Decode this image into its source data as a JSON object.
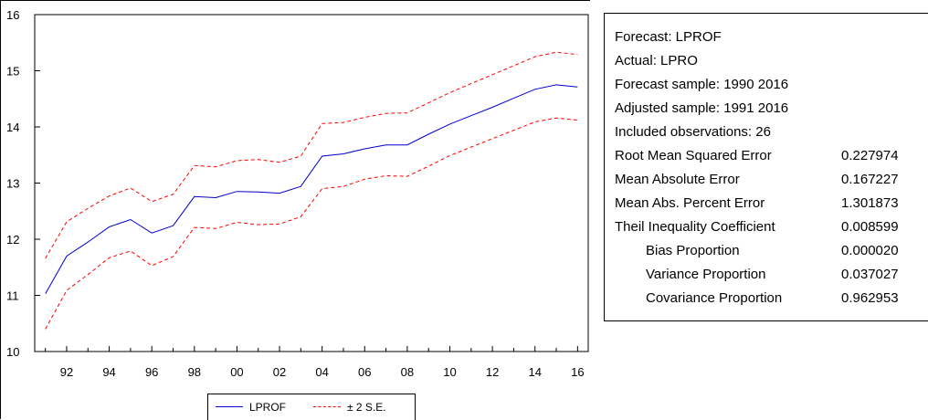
{
  "chart_data": {
    "type": "line",
    "x": [
      1991,
      1992,
      1993,
      1994,
      1995,
      1996,
      1997,
      1998,
      1999,
      2000,
      2001,
      2002,
      2003,
      2004,
      2005,
      2006,
      2007,
      2008,
      2009,
      2010,
      2011,
      2012,
      2013,
      2014,
      2015,
      2016
    ],
    "x_tick_values": [
      1992,
      1994,
      1996,
      1998,
      2000,
      2002,
      2004,
      2006,
      2008,
      2010,
      2012,
      2014,
      2016
    ],
    "x_tick_labels": [
      "92",
      "94",
      "96",
      "98",
      "00",
      "02",
      "04",
      "06",
      "08",
      "10",
      "12",
      "14",
      "16"
    ],
    "ylim": [
      10,
      16
    ],
    "y_ticks": [
      10,
      11,
      12,
      13,
      14,
      15,
      16
    ],
    "y_tick_labels": [
      "10",
      "11",
      "12",
      "13",
      "14",
      "15",
      "16"
    ],
    "series": [
      {
        "name": "LPROF",
        "color": "#0000cc",
        "style": "solid",
        "values": [
          11.03,
          11.7,
          11.95,
          12.22,
          12.35,
          12.11,
          12.24,
          12.76,
          12.74,
          12.85,
          12.84,
          12.82,
          12.94,
          13.48,
          13.52,
          13.61,
          13.68,
          13.68,
          13.87,
          14.05,
          14.2,
          14.35,
          14.51,
          14.67,
          14.75,
          14.71
        ]
      },
      {
        "name": "± 2 S.E.",
        "color": "#ff0000",
        "style": "dashed",
        "upper": [
          11.66,
          12.31,
          12.55,
          12.77,
          12.91,
          12.67,
          12.8,
          13.31,
          13.29,
          13.4,
          13.42,
          13.37,
          13.48,
          14.06,
          14.08,
          14.17,
          14.24,
          14.25,
          14.43,
          14.61,
          14.77,
          14.93,
          15.09,
          15.25,
          15.33,
          15.29
        ],
        "lower": [
          10.4,
          11.09,
          11.37,
          11.67,
          11.79,
          11.53,
          11.69,
          12.21,
          12.19,
          12.3,
          12.26,
          12.27,
          12.4,
          12.9,
          12.94,
          13.07,
          13.13,
          13.12,
          13.3,
          13.49,
          13.64,
          13.79,
          13.94,
          14.09,
          14.16,
          14.12
        ]
      }
    ],
    "legend": {
      "placement": "bottom-center"
    },
    "grid": false
  },
  "stats": {
    "rows": [
      {
        "label": "Forecast: LPROF",
        "value": "",
        "indent": false
      },
      {
        "label": "Actual: LPRO",
        "value": "",
        "indent": false
      },
      {
        "label": "Forecast sample: 1990 2016",
        "value": "",
        "indent": false
      },
      {
        "label": "Adjusted sample: 1991 2016",
        "value": "",
        "indent": false
      },
      {
        "label": "Included observations: 26",
        "value": "",
        "indent": false
      },
      {
        "label": "Root Mean Squared Error",
        "value": "0.227974",
        "indent": false
      },
      {
        "label": "Mean Absolute Error",
        "value": "0.167227",
        "indent": false
      },
      {
        "label": "Mean Abs. Percent Error",
        "value": "1.301873",
        "indent": false
      },
      {
        "label": "Theil Inequality Coefficient",
        "value": "0.008599",
        "indent": false
      },
      {
        "label": "Bias Proportion",
        "value": "0.000020",
        "indent": true
      },
      {
        "label": "Variance Proportion",
        "value": "0.037027",
        "indent": true
      },
      {
        "label": "Covariance Proportion",
        "value": "0.962953",
        "indent": true
      }
    ]
  }
}
